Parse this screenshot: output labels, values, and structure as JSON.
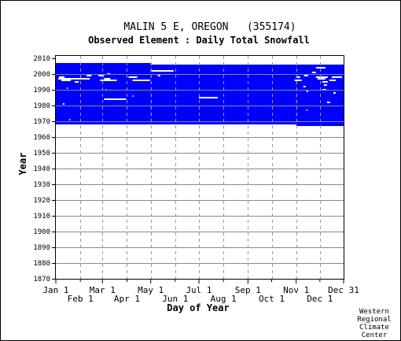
{
  "chart_data": {
    "type": "heatmap",
    "title": "MALIN 5 E, OREGON   (355174)",
    "subtitle": "Observed Element : Daily Total Snowfall",
    "xlabel": "Day of Year",
    "ylabel": "Year",
    "credit": [
      "Western",
      "Regional",
      "Climate",
      "Center"
    ],
    "xlim": [
      1,
      365
    ],
    "ylim": [
      1870,
      2010
    ],
    "grid": true,
    "x_ticks_row1": [
      {
        "label": "Jan 1",
        "day": 1
      },
      {
        "label": "Mar 1",
        "day": 60
      },
      {
        "label": "May 1",
        "day": 121
      },
      {
        "label": "Jul 1",
        "day": 182
      },
      {
        "label": "Sep 1",
        "day": 244
      },
      {
        "label": "Nov 1",
        "day": 305
      },
      {
        "label": "Dec 31",
        "day": 365
      }
    ],
    "x_ticks_row2": [
      {
        "label": "Feb 1",
        "day": 32
      },
      {
        "label": "Apr 1",
        "day": 91
      },
      {
        "label": "Jun 1",
        "day": 152
      },
      {
        "label": "Aug 1",
        "day": 213
      },
      {
        "label": "Oct 1",
        "day": 274
      },
      {
        "label": "Dec 1",
        "day": 335
      }
    ],
    "x_gridlines": [
      32,
      60,
      91,
      121,
      152,
      182,
      213,
      244,
      274,
      305,
      335
    ],
    "y_ticks": [
      1870,
      1880,
      1890,
      1900,
      1910,
      1920,
      1930,
      1940,
      1950,
      1960,
      1970,
      1980,
      1990,
      2000,
      2010
    ],
    "data_color": "#0000ff",
    "missing_color": "#ffffff",
    "coverage_blocks": [
      {
        "day_start": 1,
        "day_end": 120,
        "year_start": 1968,
        "year_end": 2007
      },
      {
        "day_start": 121,
        "day_end": 304,
        "year_start": 1968,
        "year_end": 2006
      },
      {
        "day_start": 305,
        "day_end": 365,
        "year_start": 1967,
        "year_end": 2006
      }
    ],
    "missing_segments": [
      {
        "year": 1998,
        "day_start": 5,
        "day_end": 12
      },
      {
        "year": 1997,
        "day_start": 4,
        "day_end": 32
      },
      {
        "year": 1996,
        "day_start": 8,
        "day_end": 20
      },
      {
        "year": 1997,
        "day_start": 32,
        "day_end": 44
      },
      {
        "year": 1999,
        "day_start": 40,
        "day_end": 46
      },
      {
        "year": 1995,
        "day_start": 25,
        "day_end": 30
      },
      {
        "year": 1991,
        "day_start": 15,
        "day_end": 16
      },
      {
        "year": 1981,
        "day_start": 10,
        "day_end": 12
      },
      {
        "year": 1971,
        "day_start": 18,
        "day_end": 19
      },
      {
        "year": 1999,
        "day_start": 55,
        "day_end": 62
      },
      {
        "year": 1996,
        "day_start": 57,
        "day_end": 78
      },
      {
        "year": 1997,
        "day_start": 62,
        "day_end": 70
      },
      {
        "year": 1984,
        "day_start": 62,
        "day_end": 90
      },
      {
        "year": 2000,
        "day_start": 66,
        "day_end": 70
      },
      {
        "year": 1990,
        "day_start": 64,
        "day_end": 65
      },
      {
        "year": 1998,
        "day_start": 93,
        "day_end": 104
      },
      {
        "year": 1996,
        "day_start": 98,
        "day_end": 120
      },
      {
        "year": 1986,
        "day_start": 98,
        "day_end": 99
      },
      {
        "year": 2002,
        "day_start": 121,
        "day_end": 150
      },
      {
        "year": 1999,
        "day_start": 130,
        "day_end": 133
      },
      {
        "year": 1985,
        "day_start": 182,
        "day_end": 206
      },
      {
        "year": 1998,
        "day_start": 305,
        "day_end": 310
      },
      {
        "year": 1996,
        "day_start": 303,
        "day_end": 312
      },
      {
        "year": 1999,
        "day_start": 315,
        "day_end": 320
      },
      {
        "year": 1992,
        "day_start": 314,
        "day_end": 317
      },
      {
        "year": 1989,
        "day_start": 318,
        "day_end": 320
      },
      {
        "year": 1977,
        "day_start": 318,
        "day_end": 319
      },
      {
        "year": 2004,
        "day_start": 330,
        "day_end": 342
      },
      {
        "year": 2001,
        "day_start": 325,
        "day_end": 330
      },
      {
        "year": 1998,
        "day_start": 330,
        "day_end": 345
      },
      {
        "year": 1997,
        "day_start": 332,
        "day_end": 342
      },
      {
        "year": 1996,
        "day_start": 347,
        "day_end": 355
      },
      {
        "year": 1995,
        "day_start": 338,
        "day_end": 345
      },
      {
        "year": 1998,
        "day_start": 350,
        "day_end": 363
      },
      {
        "year": 1993,
        "day_start": 340,
        "day_end": 344
      },
      {
        "year": 1990,
        "day_start": 338,
        "day_end": 343
      },
      {
        "year": 1982,
        "day_start": 344,
        "day_end": 348
      },
      {
        "year": 1988,
        "day_start": 352,
        "day_end": 355
      }
    ]
  }
}
